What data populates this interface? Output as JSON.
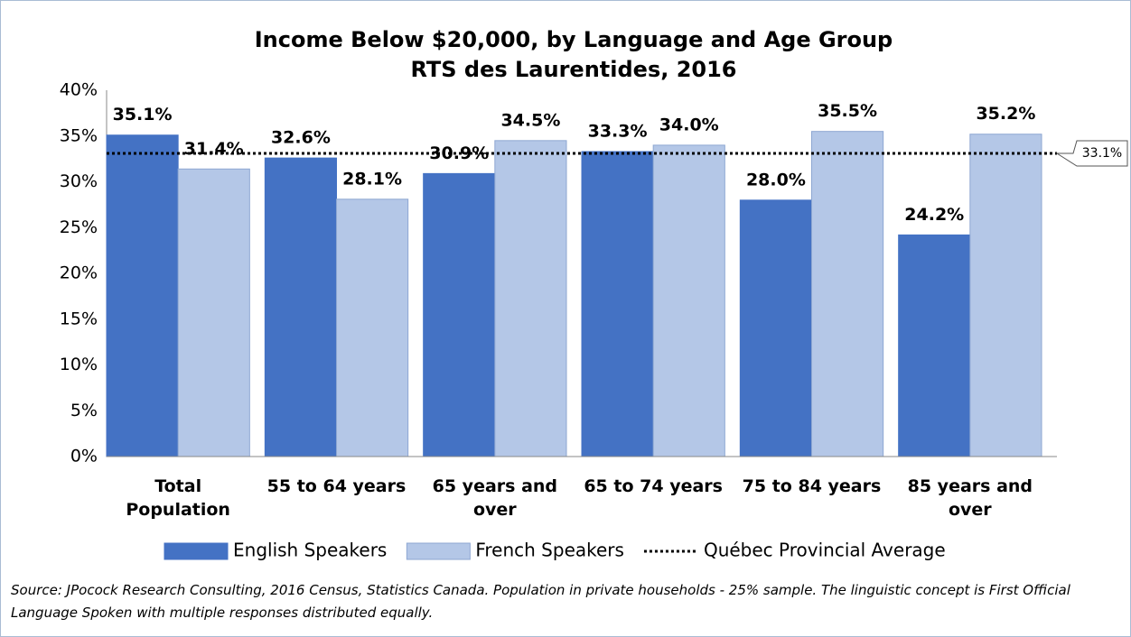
{
  "chart_data": {
    "type": "bar",
    "title": "Income Below $20,000, by Language and Age Group",
    "subtitle": "RTS des Laurentides, 2016",
    "categories": [
      "Total Population",
      "55 to 64 years",
      "65 years and over",
      "65 to 74 years",
      "75 to 84 years",
      "85 years and over"
    ],
    "series": [
      {
        "name": "English Speakers",
        "color": "#4472c4",
        "values": [
          35.1,
          32.6,
          30.9,
          33.3,
          28.0,
          24.2
        ],
        "value_labels": [
          "35.1%",
          "32.6%",
          "30.9%",
          "33.3%",
          "28.0%",
          "24.2%"
        ]
      },
      {
        "name": "French Speakers",
        "color": "#b4c7e7",
        "values": [
          31.4,
          28.1,
          34.5,
          34.0,
          35.5,
          35.2
        ],
        "value_labels": [
          "31.4%",
          "28.1%",
          "34.5%",
          "34.0%",
          "35.5%",
          "35.2%"
        ]
      }
    ],
    "reference_line": {
      "name": "Québec Provincial Average",
      "value": 33.1,
      "label": "33.1%"
    },
    "ylim": [
      0,
      40
    ],
    "yticks": [
      {
        "value": 0,
        "label": "0%"
      },
      {
        "value": 5,
        "label": "5%"
      },
      {
        "value": 10,
        "label": "10%"
      },
      {
        "value": 15,
        "label": "15%"
      },
      {
        "value": 20,
        "label": "20%"
      },
      {
        "value": 25,
        "label": "25%"
      },
      {
        "value": 30,
        "label": "30%"
      },
      {
        "value": 35,
        "label": "35%"
      },
      {
        "value": 40,
        "label": "40%"
      }
    ],
    "grid": false,
    "legend": "bottom",
    "source": "Source: JPocock Research Consulting, 2016 Census, Statistics Canada. Population in private households - 25% sample. The linguistic concept is First Official Language Spoken with multiple responses distributed equally."
  }
}
